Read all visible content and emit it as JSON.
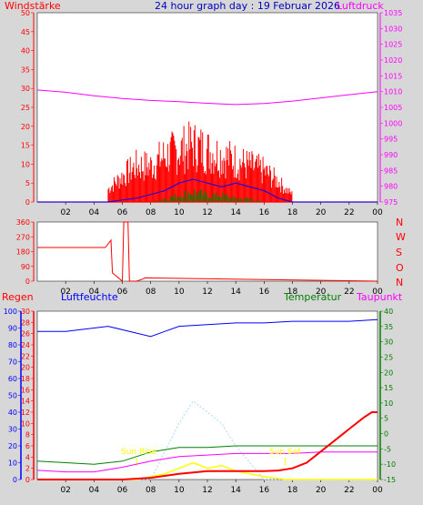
{
  "header": {
    "left_label": "Windstärke",
    "title": "24 hour graph day : 19 Februar 2026",
    "right_label": "Luftdruck"
  },
  "wind_dir_labels": [
    "N",
    "W",
    "S",
    "O",
    "N"
  ],
  "bottom_header": {
    "regen": "Regen",
    "luftfeuchte": "Luftfeuchte",
    "temperatur": "Temperatur",
    "taupunkt": "Taupunkt"
  },
  "sunrise_label": "Sun Rise",
  "sunset_label": "Sun Set",
  "colors": {
    "background": "#d7d7d7",
    "plot": "#ffffff",
    "red": "#ff0000",
    "blue": "#0000ff",
    "green": "#008000",
    "magenta": "#ff00ff",
    "yellow": "#ffff00",
    "lightblue": "#a8d8ff"
  },
  "chart_data": [
    {
      "type": "line",
      "name": "wind-pressure",
      "x_ticks": [
        "02",
        "04",
        "06",
        "08",
        "10",
        "12",
        "14",
        "16",
        "18",
        "20",
        "22",
        "00"
      ],
      "ylim_left": [
        0,
        50
      ],
      "yticks_left": [
        "0",
        "5",
        "10",
        "15",
        "20",
        "25",
        "30",
        "35",
        "40",
        "45",
        "50"
      ],
      "ylim_right": [
        975,
        1035
      ],
      "yticks_right": [
        "975",
        "980",
        "985",
        "990",
        "995",
        "1000",
        "1005",
        "1010",
        "1015",
        "1020",
        "1025",
        "1030",
        "1035"
      ],
      "pressure": {
        "x": [
          0,
          2,
          4,
          6,
          8,
          10,
          12,
          14,
          16,
          18,
          20,
          22,
          24
        ],
        "y": [
          1010.5,
          1009.8,
          1008.7,
          1007.8,
          1007.2,
          1006.8,
          1006.3,
          1005.9,
          1006.2,
          1007.0,
          1008.0,
          1009.0,
          1010.0
        ]
      },
      "wind_gust_envelope": {
        "x": [
          0,
          4.9,
          5,
          6,
          7,
          8,
          9,
          10,
          11,
          12,
          13,
          14,
          15,
          16,
          17,
          17.5,
          18,
          18.1,
          24
        ],
        "y": [
          0,
          0,
          5,
          10,
          14,
          14,
          18,
          20,
          22,
          20,
          18,
          16,
          14,
          12,
          8,
          5,
          3,
          0,
          0
        ]
      },
      "wind_mean": {
        "x": [
          0,
          5,
          6,
          7,
          8,
          9,
          10,
          11,
          12,
          13,
          14,
          15,
          16,
          17,
          18,
          24
        ],
        "y": [
          0,
          0,
          0.5,
          1,
          2,
          3,
          5,
          6,
          5,
          4,
          5,
          4,
          3,
          1,
          0,
          0
        ]
      },
      "wind_min": {
        "x": [
          0,
          8,
          9,
          10,
          11,
          12,
          13,
          14,
          15,
          16,
          24
        ],
        "y": [
          0,
          0,
          1,
          2,
          3,
          2,
          2,
          1,
          1,
          0,
          0
        ]
      }
    },
    {
      "type": "line",
      "name": "wind-direction",
      "x_ticks": [
        "02",
        "04",
        "06",
        "08",
        "10",
        "12",
        "14",
        "16",
        "18",
        "20",
        "22",
        "00"
      ],
      "ylim": [
        0,
        360
      ],
      "yticks": [
        "0",
        "90",
        "180",
        "270",
        "360"
      ],
      "x": [
        0,
        4.8,
        5.2,
        5.3,
        6.0,
        6.1,
        6.4,
        6.5,
        7.0,
        7.5,
        7.6,
        24
      ],
      "y": [
        205,
        205,
        250,
        50,
        0,
        360,
        360,
        0,
        0,
        15,
        20,
        0
      ]
    },
    {
      "type": "line",
      "name": "weather",
      "x_ticks": [
        "02",
        "04",
        "06",
        "08",
        "10",
        "12",
        "14",
        "16",
        "18",
        "20",
        "22",
        "00"
      ],
      "ylim_humidity": [
        0,
        100
      ],
      "yticks_humidity": [
        "0",
        "10",
        "20",
        "30",
        "40",
        "50",
        "60",
        "70",
        "80",
        "90",
        "100"
      ],
      "ylim_rain": [
        0,
        30
      ],
      "yticks_rain": [
        "0",
        "2",
        "4",
        "6",
        "8",
        "10",
        "12",
        "14",
        "16",
        "18",
        "20",
        "22",
        "24",
        "26",
        "28",
        "30"
      ],
      "ylim_temp": [
        -15,
        40
      ],
      "yticks_temp": [
        "-15",
        "-10",
        "-5",
        "0",
        "5",
        "10",
        "15",
        "20",
        "25",
        "30",
        "35",
        "40"
      ],
      "sunrise_hour": 7,
      "sunset_hour": 17.5,
      "humidity": {
        "x": [
          0,
          2,
          4,
          5,
          6,
          7,
          8,
          9,
          10,
          12,
          14,
          16,
          18,
          20,
          22,
          24
        ],
        "y": [
          88,
          88,
          90,
          91,
          89,
          87,
          85,
          88,
          91,
          92,
          93,
          93,
          94,
          94,
          94,
          95
        ]
      },
      "temperature": {
        "x": [
          0,
          2,
          4,
          6,
          8,
          10,
          12,
          14,
          16,
          18,
          20,
          22,
          24
        ],
        "y": [
          -9,
          -9.5,
          -10,
          -9,
          -6,
          -4.5,
          -4.5,
          -4,
          -4,
          -4,
          -4,
          -4,
          -4
        ]
      },
      "dewpoint": {
        "x": [
          0,
          2,
          4,
          6,
          8,
          10,
          12,
          14,
          16,
          18,
          20,
          22,
          24
        ],
        "y": [
          -12,
          -12.5,
          -12.5,
          -11,
          -9,
          -7.5,
          -7,
          -6.5,
          -6.5,
          -6.5,
          -6,
          -6,
          -6
        ]
      },
      "rain": {
        "x": [
          0,
          6,
          8,
          10,
          12,
          14,
          16,
          17,
          18,
          19,
          20,
          21,
          22,
          23,
          23.6,
          24
        ],
        "y": [
          0,
          0,
          0.3,
          1,
          1.5,
          1.5,
          1.5,
          1.6,
          2,
          3,
          5,
          7,
          9,
          11,
          12,
          12
        ]
      },
      "solar": {
        "x": [
          0,
          7,
          8,
          9,
          10,
          11,
          12,
          13,
          14,
          15,
          16,
          17,
          17.5,
          24
        ],
        "y": [
          0,
          0,
          0.5,
          1,
          2,
          3,
          2,
          2.5,
          1.5,
          1,
          0.5,
          0.2,
          0,
          0
        ]
      },
      "uv": {
        "x": [
          0,
          8,
          10,
          11,
          12,
          13,
          14,
          15,
          16,
          24
        ],
        "y": [
          0,
          0,
          10,
          14,
          12,
          10,
          6,
          3,
          0,
          0
        ]
      }
    }
  ]
}
